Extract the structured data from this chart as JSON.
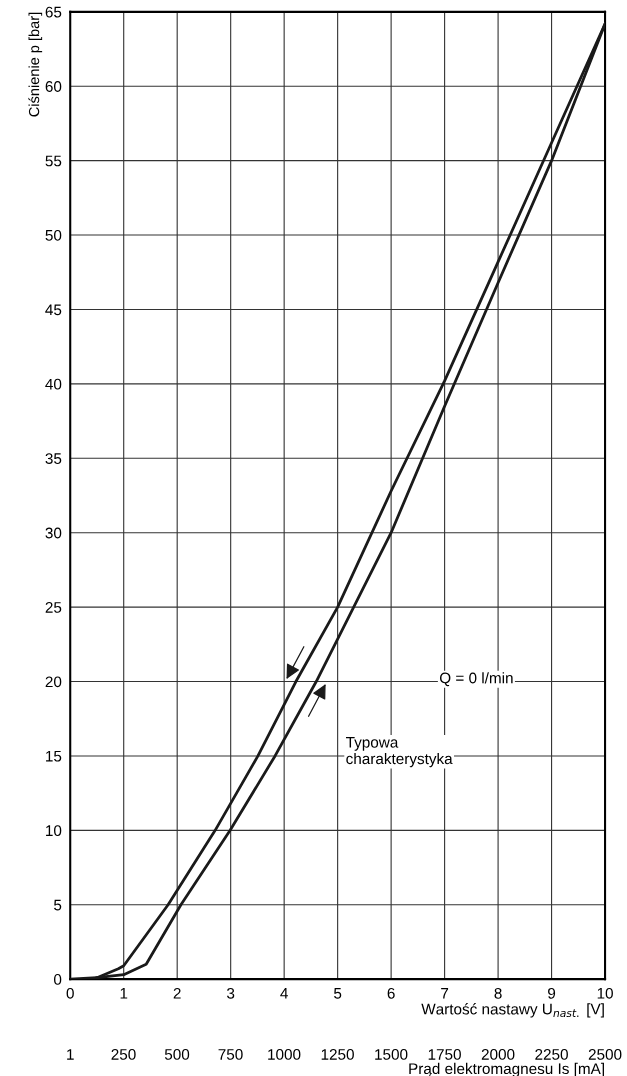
{
  "chart_data": {
    "type": "line",
    "xlabel": "Wartość nastawy U$_{nast.}$ [V]",
    "ylabel": "Ciśnienie p [bar]",
    "x2label": "Prąd elektromagnesu Is [mA]",
    "xlim": [
      0,
      10
    ],
    "xticks": [
      0,
      1,
      2,
      3,
      4,
      5,
      6,
      7,
      8,
      9,
      10
    ],
    "ylim": [
      0,
      65
    ],
    "yticks": [
      0,
      5,
      10,
      15,
      20,
      25,
      30,
      35,
      40,
      45,
      50,
      55,
      60,
      65
    ],
    "x2lim": [
      1,
      2500
    ],
    "x2ticks": [
      1,
      250,
      500,
      750,
      1000,
      1250,
      1500,
      1750,
      2000,
      2250,
      2500
    ],
    "grid": true,
    "marker": "none",
    "line_style": "solid",
    "series": [
      {
        "color": "#1a1a1a",
        "x": [
          0,
          0.5,
          0.9,
          1.0,
          1.83,
          2.71,
          3.51,
          4.22,
          5.0,
          6,
          7,
          8,
          9,
          10
        ],
        "values": [
          0,
          0.1,
          0.7,
          0.9,
          5,
          10,
          15,
          20,
          25,
          32.8,
          40.2,
          48.2,
          56.2,
          64.2
        ]
      },
      {
        "color": "#1a1a1a",
        "x": [
          0.5,
          1.0,
          1.42,
          2.07,
          2.99,
          3.83,
          4.6,
          5.3,
          6,
          7,
          8,
          9,
          10
        ],
        "values": [
          0.1,
          0.3,
          1.0,
          5,
          10,
          15,
          20,
          25,
          30,
          38.5,
          46.8,
          55,
          64.2
        ]
      }
    ],
    "annotations": [
      "Q = 0 l/min",
      "Typowa\ncharakterystyka"
    ]
  }
}
